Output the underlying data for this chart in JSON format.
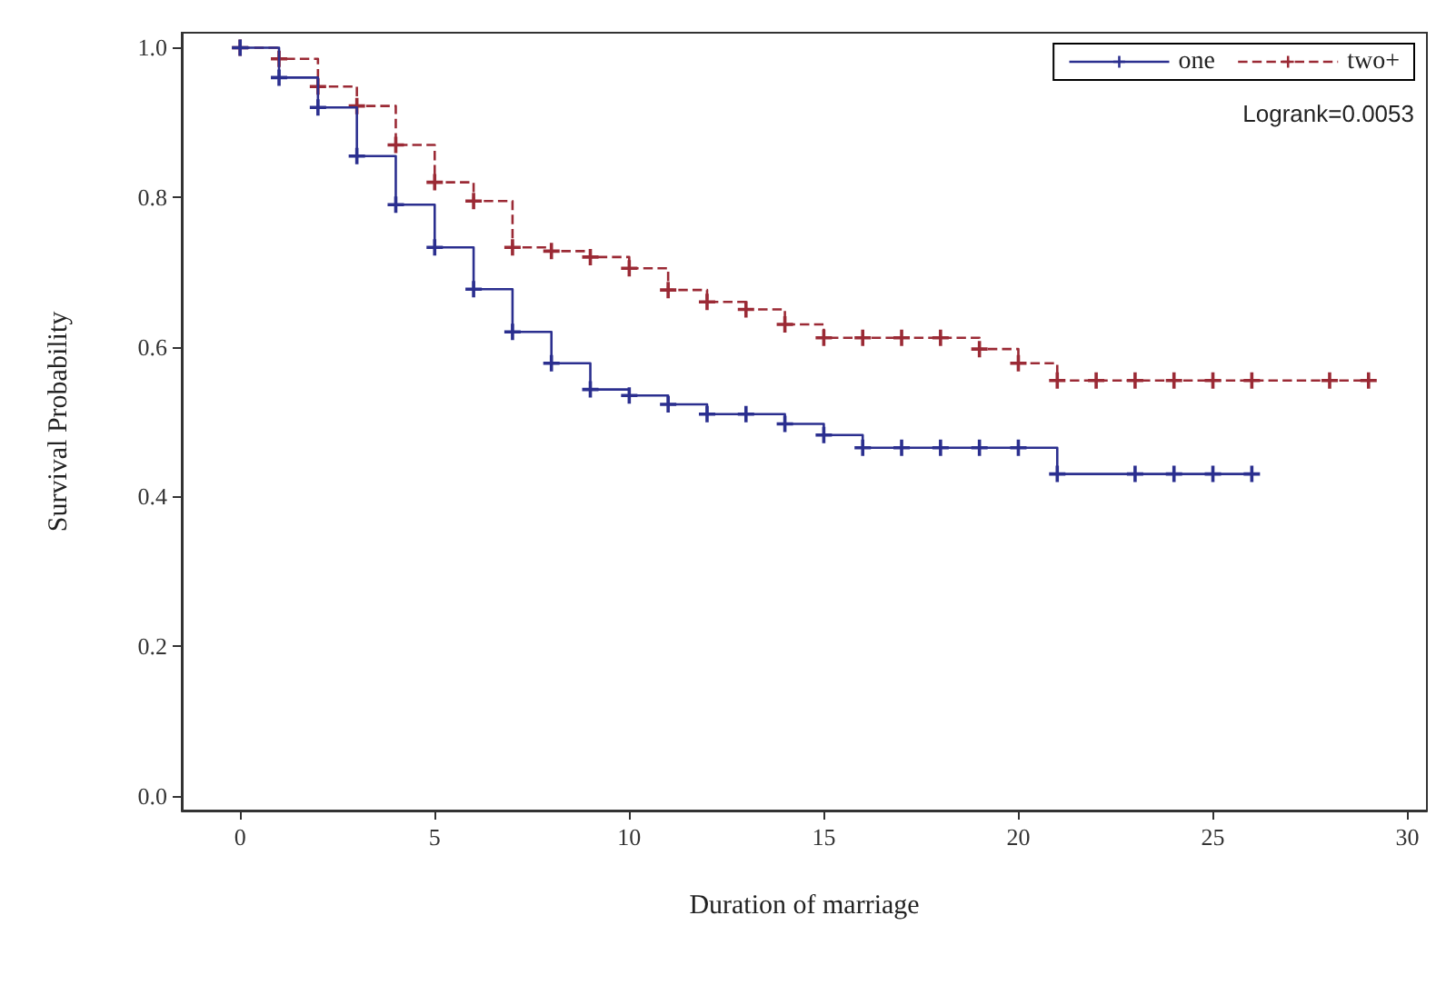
{
  "chart_data": {
    "type": "step",
    "xlabel": "Duration of marriage",
    "ylabel": "Survival Probability",
    "annotations": [
      "Logrank=0.0053"
    ],
    "xlim": [
      -1.5,
      30.5
    ],
    "xticks": [
      0,
      5,
      10,
      15,
      20,
      25,
      30
    ],
    "ylim": [
      -0.02,
      1.02
    ],
    "yticks": [
      {
        "value": 0,
        "label": "0.0"
      },
      {
        "value": 0.2,
        "label": "0.2"
      },
      {
        "value": 0.4,
        "label": "0.4"
      },
      {
        "value": 0.6,
        "label": "0.6"
      },
      {
        "value": 0.8,
        "label": "0.8"
      },
      {
        "value": 1,
        "label": "1.0"
      }
    ],
    "grid": false,
    "legend": "top right",
    "marker": "cross",
    "series": [
      {
        "name": "one",
        "color": "#2b2f8f",
        "line_style": "solid",
        "x": [
          0,
          1,
          2,
          3,
          4,
          5,
          6,
          7,
          8,
          9,
          10,
          11,
          12,
          13,
          14,
          15,
          16,
          17,
          18,
          19,
          20,
          21,
          23,
          24,
          25,
          26
        ],
        "values": [
          1.0,
          0.96,
          0.92,
          0.855,
          0.79,
          0.733,
          0.677,
          0.62,
          0.578,
          0.543,
          0.535,
          0.523,
          0.51,
          0.51,
          0.497,
          0.482,
          0.465,
          0.465,
          0.465,
          0.465,
          0.465,
          0.43,
          0.43,
          0.43,
          0.43,
          0.43
        ]
      },
      {
        "name": "two+",
        "color": "#9b2a35",
        "line_style": "dashed",
        "x": [
          0,
          1,
          2,
          3,
          4,
          5,
          6,
          7,
          8,
          9,
          10,
          11,
          12,
          13,
          14,
          15,
          16,
          17,
          18,
          19,
          20,
          21,
          22,
          23,
          24,
          25,
          26,
          28,
          29
        ],
        "values": [
          1.0,
          0.985,
          0.948,
          0.922,
          0.87,
          0.82,
          0.795,
          0.733,
          0.728,
          0.72,
          0.705,
          0.676,
          0.66,
          0.65,
          0.63,
          0.612,
          0.612,
          0.612,
          0.612,
          0.597,
          0.578,
          0.555,
          0.555,
          0.555,
          0.555,
          0.555,
          0.555,
          0.555,
          0.555
        ]
      }
    ]
  }
}
